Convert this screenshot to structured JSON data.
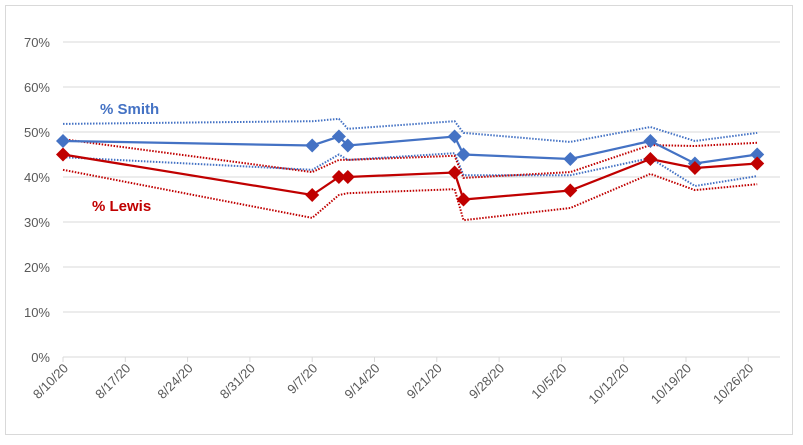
{
  "chart_data": {
    "type": "line",
    "title": "",
    "xlabel": "",
    "ylabel": "",
    "ylim": [
      0,
      0.7
    ],
    "yticks": [
      "0%",
      "10%",
      "20%",
      "30%",
      "40%",
      "50%",
      "60%",
      "70%"
    ],
    "xticks": [
      "8/10/20",
      "8/17/20",
      "8/24/20",
      "8/31/20",
      "9/7/20",
      "9/14/20",
      "9/21/20",
      "9/28/20",
      "10/5/20",
      "10/12/20",
      "10/19/20",
      "10/26/20"
    ],
    "grid": "horizontal",
    "legend": "inline labels",
    "x": [
      "8/10/20",
      "9/7/20",
      "9/10/20",
      "9/11/20",
      "9/23/20",
      "9/24/20",
      "10/6/20",
      "10/15/20",
      "10/20/20",
      "10/27/20"
    ],
    "x_day_offsets": [
      0,
      28,
      31,
      32,
      44,
      45,
      57,
      66,
      71,
      78
    ],
    "series": [
      {
        "name": "% Smith",
        "color": "#4472c4",
        "values": [
          0.48,
          0.47,
          0.49,
          0.47,
          0.49,
          0.45,
          0.44,
          0.48,
          0.43,
          0.45
        ],
        "upper": [
          0.518,
          0.524,
          0.529,
          0.507,
          0.524,
          0.498,
          0.478,
          0.511,
          0.48,
          0.498
        ],
        "lower": [
          0.444,
          0.416,
          0.45,
          0.438,
          0.453,
          0.404,
          0.404,
          0.442,
          0.38,
          0.402
        ]
      },
      {
        "name": "% Lewis",
        "color": "#c00000",
        "values": [
          0.45,
          0.36,
          0.4,
          0.4,
          0.41,
          0.35,
          0.37,
          0.44,
          0.42,
          0.43
        ],
        "upper": [
          0.484,
          0.411,
          0.438,
          0.438,
          0.447,
          0.398,
          0.411,
          0.471,
          0.469,
          0.476
        ],
        "lower": [
          0.416,
          0.309,
          0.36,
          0.364,
          0.373,
          0.304,
          0.331,
          0.407,
          0.371,
          0.384
        ]
      }
    ],
    "annotations": [
      {
        "text": "% Smith",
        "color": "#4472c4"
      },
      {
        "text": "% Lewis",
        "color": "#c00000"
      }
    ]
  }
}
